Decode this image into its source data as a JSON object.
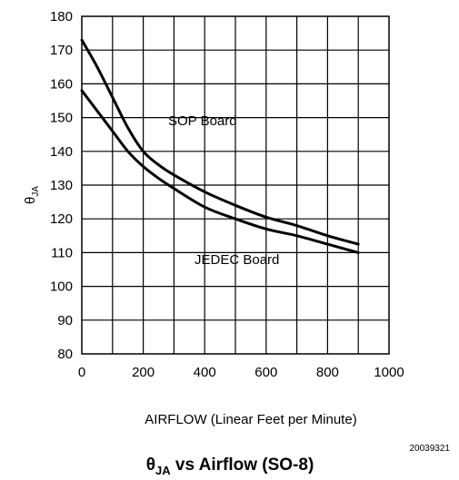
{
  "chart_data": {
    "type": "line",
    "title": "vs Airflow (SO-8)",
    "title_symbol": "θ",
    "title_symbol_sub": "JA",
    "xlabel": "AIRFLOW (Linear Feet per Minute)",
    "ylabel_symbol": "θ",
    "ylabel_sub": "JA",
    "xlim": [
      0,
      1000
    ],
    "ylim": [
      80,
      180
    ],
    "xticks": [
      0,
      200,
      400,
      600,
      800,
      1000
    ],
    "yticks": [
      80,
      90,
      100,
      110,
      120,
      130,
      140,
      150,
      160,
      170,
      180
    ],
    "x_minor_step": 100,
    "grid": true,
    "figure_id": "20039321",
    "annotations": [
      "SOP Board",
      "JEDEC Board"
    ],
    "series": [
      {
        "name": "SOP Board",
        "x": [
          0,
          50,
          100,
          150,
          200,
          250,
          300,
          400,
          500,
          600,
          700,
          800,
          900
        ],
        "y": [
          173,
          165,
          156,
          147,
          140,
          136,
          133,
          128,
          124,
          120.5,
          118,
          115,
          112.5
        ]
      },
      {
        "name": "JEDEC Board",
        "x": [
          0,
          50,
          100,
          150,
          200,
          250,
          300,
          400,
          500,
          600,
          700,
          800,
          900
        ],
        "y": [
          158,
          152,
          146,
          140,
          135.5,
          132,
          129,
          123.5,
          120,
          117,
          115,
          112.5,
          110
        ]
      }
    ]
  }
}
